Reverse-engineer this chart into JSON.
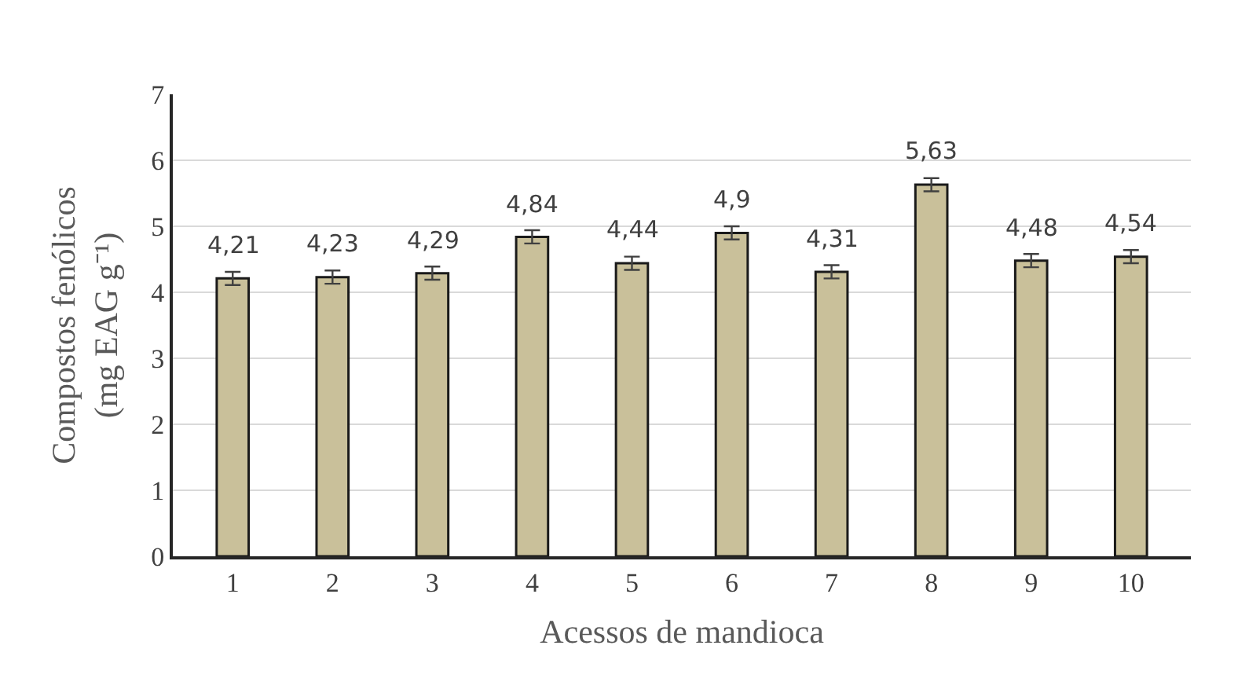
{
  "chart_data": {
    "type": "bar",
    "xlabel": "Acessos de mandioca",
    "ylabel": "Compostos fenólicos (mg EAG g⁻¹)",
    "categories": [
      "1",
      "2",
      "3",
      "4",
      "5",
      "6",
      "7",
      "8",
      "9",
      "10"
    ],
    "values": [
      4.21,
      4.23,
      4.29,
      4.84,
      4.44,
      4.9,
      4.31,
      5.63,
      4.48,
      4.54
    ],
    "value_labels": [
      "4,21",
      "4,23",
      "4,29",
      "4,84",
      "4,44",
      "4,9",
      "4,31",
      "5,63",
      "4,48",
      "4,54"
    ],
    "errors": [
      0.1,
      0.1,
      0.1,
      0.1,
      0.1,
      0.1,
      0.1,
      0.1,
      0.1,
      0.1
    ],
    "color": "#c9c09a",
    "ylim": [
      0,
      7
    ],
    "yticks": [
      0,
      1,
      2,
      3,
      4,
      5,
      6,
      7
    ],
    "grid": "y"
  }
}
